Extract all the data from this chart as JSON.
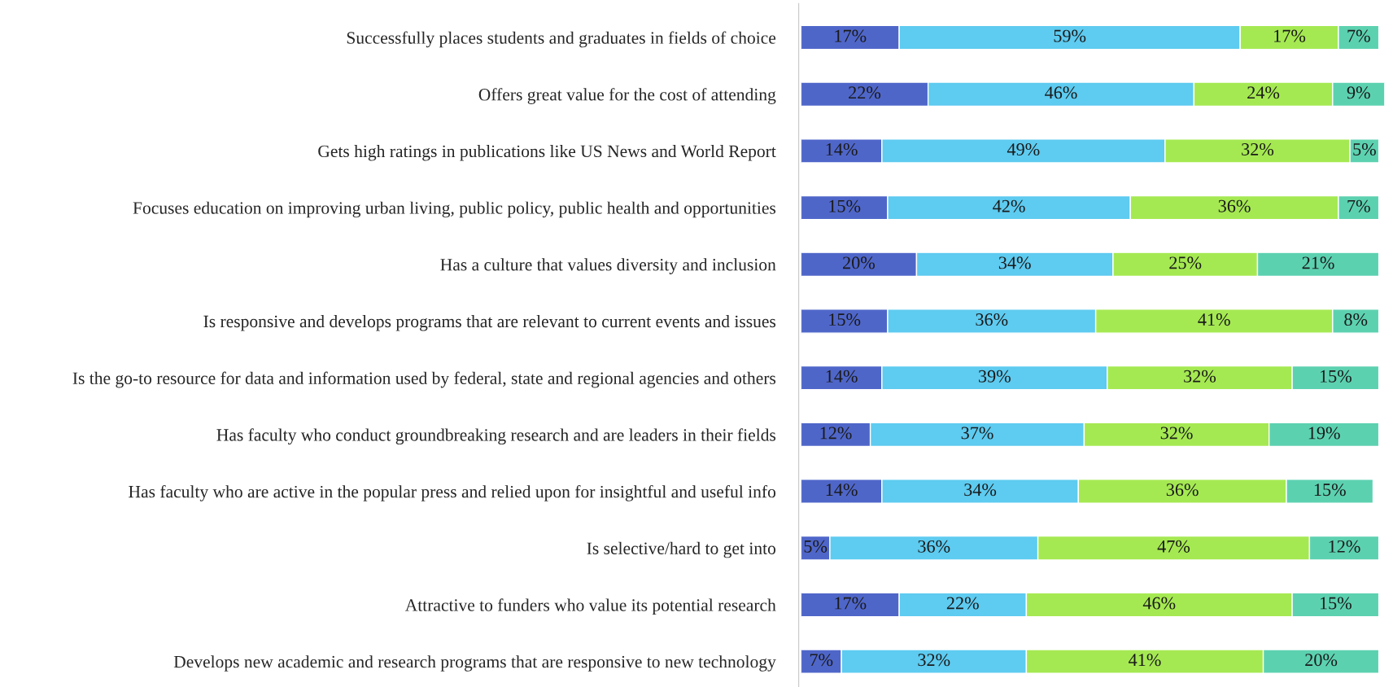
{
  "chart_data": {
    "type": "bar",
    "orientation": "horizontal",
    "stacked": true,
    "data_labels": true,
    "grid": false,
    "tick_labels": "y",
    "categories": [
      "Successfully places students and graduates in fields of choice",
      "Offers great value for the cost of attending",
      "Gets high ratings in publications like US News and World Report",
      "Focuses education on improving urban living, public policy, public health and opportunities",
      "Has a culture that values diversity and inclusion",
      "Is responsive and develops programs that are relevant to current events and issues",
      "Is the go-to resource for data and information used by federal, state and regional agencies and others",
      "Has faculty who conduct groundbreaking research and are leaders in their fields",
      "Has faculty who are active in the popular press and relied upon for insightful and useful info",
      "Is selective/hard to get into",
      "Attractive to funders who value its potential research",
      "Develops new academic and research programs that are responsive to new technology"
    ],
    "series": [
      {
        "color": "#4f66c9",
        "values": [
          17,
          22,
          14,
          15,
          20,
          15,
          14,
          12,
          14,
          5,
          17,
          7
        ],
        "value_labels": [
          "17%",
          "22%",
          "14%",
          "15%",
          "20%",
          "15%",
          "14%",
          "12%",
          "14%",
          "5%",
          "17%",
          "7%"
        ]
      },
      {
        "color": "#5ecbf0",
        "values": [
          59,
          46,
          49,
          42,
          34,
          36,
          39,
          37,
          34,
          36,
          22,
          32
        ],
        "value_labels": [
          "59%",
          "46%",
          "49%",
          "42%",
          "34%",
          "36%",
          "39%",
          "37%",
          "34%",
          "36%",
          "22%",
          "32%"
        ]
      },
      {
        "color": "#a5e952",
        "values": [
          17,
          24,
          32,
          36,
          25,
          41,
          32,
          32,
          36,
          47,
          46,
          41
        ],
        "value_labels": [
          "17%",
          "24%",
          "32%",
          "36%",
          "25%",
          "41%",
          "32%",
          "32%",
          "36%",
          "47%",
          "46%",
          "41%"
        ]
      },
      {
        "color": "#5cd1b0",
        "values": [
          7,
          9,
          5,
          7,
          21,
          8,
          15,
          19,
          15,
          12,
          15,
          20
        ],
        "value_labels": [
          "7%",
          "9%",
          "5%",
          "7%",
          "21%",
          "8%",
          "15%",
          "19%",
          "15%",
          "12%",
          "15%",
          "20%"
        ]
      }
    ]
  }
}
